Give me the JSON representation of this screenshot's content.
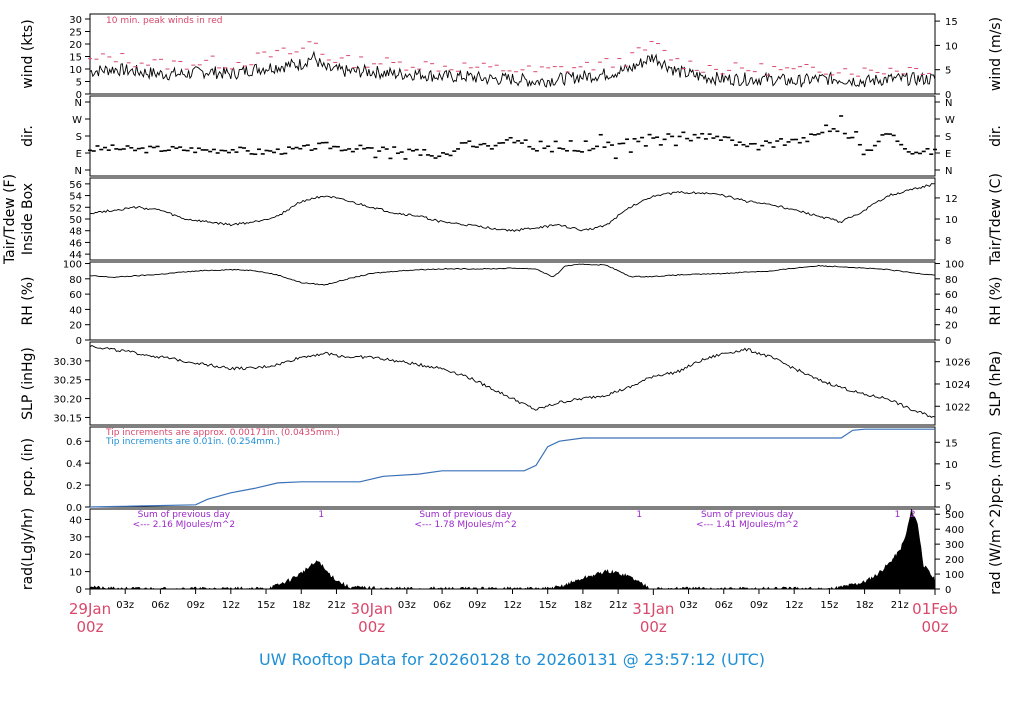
{
  "footer_title": "UW Rooftop Data for 20260128  to  20260131 @ 23:57:12  (UTC)",
  "colors": {
    "red_accent": "#d9486b",
    "blue_accent": "#1f8fd6",
    "pcp_line": "#3a72b8",
    "purple": "#9b27c9",
    "ink": "#000000"
  },
  "time_axis": {
    "day_labels": [
      {
        "day": "29Jan",
        "sub": "00z",
        "hour": 0
      },
      {
        "day": "30Jan",
        "sub": "00z",
        "hour": 24
      },
      {
        "day": "31Jan",
        "sub": "00z",
        "hour": 48
      },
      {
        "day": "01Feb",
        "sub": "00z",
        "hour": 72
      }
    ],
    "hour_ticks": [
      {
        "label": "03z",
        "hour": 3
      },
      {
        "label": "06z",
        "hour": 6
      },
      {
        "label": "09z",
        "hour": 9
      },
      {
        "label": "12z",
        "hour": 12
      },
      {
        "label": "15z",
        "hour": 15
      },
      {
        "label": "18z",
        "hour": 18
      },
      {
        "label": "21z",
        "hour": 21
      },
      {
        "label": "03z",
        "hour": 27
      },
      {
        "label": "06z",
        "hour": 30
      },
      {
        "label": "09z",
        "hour": 33
      },
      {
        "label": "12z",
        "hour": 36
      },
      {
        "label": "15z",
        "hour": 39
      },
      {
        "label": "18z",
        "hour": 42
      },
      {
        "label": "21z",
        "hour": 45
      },
      {
        "label": "03z",
        "hour": 51
      },
      {
        "label": "06z",
        "hour": 54
      },
      {
        "label": "09z",
        "hour": 57
      },
      {
        "label": "12z",
        "hour": 60
      },
      {
        "label": "15z",
        "hour": 63
      },
      {
        "label": "18z",
        "hour": 66
      },
      {
        "label": "21z",
        "hour": 69
      }
    ]
  },
  "chart_data": [
    {
      "id": "wind",
      "type": "line",
      "ylabel_left": "wind (kts)",
      "ylabel_right": "wind (m/s)",
      "yticks_left": [
        "0",
        "5",
        "10",
        "15",
        "20",
        "25",
        "30"
      ],
      "yticks_right": [
        "0",
        "5",
        "10",
        "15"
      ],
      "ylim": [
        0,
        32
      ],
      "annotation": "10 min. peak winds in red",
      "x_hours": [
        0,
        2,
        4,
        6,
        8,
        10,
        12,
        14,
        16,
        18,
        19,
        20,
        22,
        24,
        26,
        28,
        30,
        32,
        34,
        36,
        38,
        40,
        42,
        44,
        46,
        48,
        50,
        52,
        54,
        56,
        58,
        60,
        62,
        64,
        66,
        68,
        70,
        72
      ],
      "series": [
        {
          "values": [
            9,
            10,
            9,
            8,
            8,
            9,
            8,
            10,
            11,
            12,
            15,
            10,
            9,
            9,
            8,
            8,
            7,
            7,
            6,
            6,
            5,
            6,
            7,
            8,
            10,
            15,
            9,
            7,
            6,
            6,
            6,
            5,
            6,
            6,
            5,
            6,
            6,
            6
          ]
        },
        {
          "values": [
            13,
            15,
            13,
            12,
            12,
            13,
            12,
            14,
            16,
            17,
            22,
            15,
            13,
            13,
            12,
            12,
            11,
            11,
            10,
            10,
            9,
            10,
            11,
            12,
            14,
            20,
            13,
            11,
            10,
            10,
            10,
            9,
            10,
            10,
            9,
            10,
            10,
            10
          ]
        }
      ]
    },
    {
      "id": "dir",
      "type": "scatter",
      "ylabel_left": "dir.",
      "ylabel_right": "dir.",
      "yticks": [
        "N",
        "E",
        "S",
        "W",
        "N"
      ],
      "ylim": [
        0,
        360
      ],
      "x_hours": [
        0,
        2,
        4,
        6,
        8,
        10,
        12,
        14,
        16,
        18,
        20,
        22,
        24,
        26,
        28,
        30,
        32,
        34,
        36,
        38,
        40,
        42,
        44,
        46,
        48,
        50,
        52,
        54,
        56,
        58,
        60,
        62,
        64,
        66,
        68,
        70,
        72
      ],
      "values": [
        110,
        115,
        108,
        112,
        110,
        105,
        110,
        95,
        100,
        110,
        130,
        115,
        112,
        105,
        100,
        80,
        140,
        120,
        160,
        100,
        120,
        110,
        140,
        165,
        175,
        180,
        185,
        170,
        120,
        130,
        150,
        180,
        230,
        90,
        200,
        100,
        95
      ]
    },
    {
      "id": "temp",
      "type": "line",
      "ylabel_left": "Tair/Tdew (F)",
      "ylabel_left2": "Inside Box",
      "ylabel_right": "Tair/Tdew (C)",
      "yticks_left": [
        "44",
        "46",
        "48",
        "50",
        "52",
        "54",
        "56"
      ],
      "yticks_right": [
        "8",
        "10",
        "12"
      ],
      "ylim": [
        43,
        57
      ],
      "x_hours": [
        0,
        2,
        4,
        6,
        8,
        10,
        12,
        14,
        16,
        18,
        20,
        22,
        24,
        26,
        28,
        30,
        32,
        34,
        36,
        38,
        40,
        42,
        44,
        46,
        48,
        50,
        52,
        54,
        56,
        58,
        60,
        62,
        64,
        66,
        68,
        70,
        72
      ],
      "values": [
        51,
        51.5,
        52,
        51.5,
        50,
        49.5,
        49,
        49.5,
        50.5,
        53,
        54,
        53,
        52,
        51,
        50.5,
        49.5,
        49,
        48.5,
        48,
        48.5,
        49,
        48,
        49,
        52,
        54,
        54.5,
        54.5,
        54,
        53,
        52.5,
        51.5,
        50.5,
        49.5,
        51.5,
        54,
        55,
        56
      ]
    },
    {
      "id": "rh",
      "type": "line",
      "ylabel_left": "RH (%)",
      "ylabel_right": "RH (%)",
      "yticks": [
        "0",
        "20",
        "40",
        "60",
        "80",
        "100"
      ],
      "ylim": [
        0,
        102
      ],
      "x_hours": [
        0,
        2,
        4,
        6,
        8,
        10,
        12,
        14,
        16,
        18,
        20,
        22,
        24,
        26,
        28,
        30,
        32,
        34,
        36,
        38,
        39.5,
        40.5,
        42,
        44,
        46,
        48,
        50,
        52,
        54,
        56,
        58,
        60,
        62,
        64,
        66,
        68,
        70,
        72
      ],
      "values": [
        84,
        82,
        84,
        86,
        89,
        91,
        92,
        91,
        85,
        75,
        72,
        80,
        87,
        90,
        92,
        93,
        93,
        93,
        94,
        93,
        82,
        97,
        99,
        98,
        83,
        83,
        85,
        86,
        87,
        89,
        90,
        94,
        97,
        96,
        94,
        92,
        88,
        85
      ]
    },
    {
      "id": "slp",
      "type": "line",
      "ylabel_left": "SLP (inHg)",
      "ylabel_right": "SLP (hPa)",
      "yticks_left": [
        "30.15",
        "30.20",
        "30.25",
        "30.30"
      ],
      "yticks_right": [
        "1022",
        "1024",
        "1026"
      ],
      "ylim": [
        30.13,
        30.35
      ],
      "x_hours": [
        0,
        2,
        4,
        6,
        8,
        10,
        12,
        14,
        16,
        18,
        20,
        22,
        24,
        26,
        28,
        30,
        32,
        34,
        36,
        38,
        40,
        42,
        44,
        46,
        48,
        50,
        52,
        54,
        56,
        58,
        60,
        62,
        64,
        66,
        68,
        70,
        72
      ],
      "values": [
        30.34,
        30.33,
        30.32,
        30.31,
        30.3,
        30.29,
        30.28,
        30.28,
        30.29,
        30.31,
        30.32,
        30.31,
        30.31,
        30.3,
        30.29,
        30.28,
        30.26,
        30.23,
        30.2,
        30.17,
        30.19,
        30.2,
        30.21,
        30.23,
        30.26,
        30.27,
        30.3,
        30.32,
        30.33,
        30.31,
        30.28,
        30.25,
        30.23,
        30.21,
        30.2,
        30.17,
        30.15
      ]
    },
    {
      "id": "pcp",
      "type": "line",
      "ylabel_left": "pcp. (in)",
      "ylabel_right": "pcp. (mm)",
      "yticks_left": [
        "0.0",
        "0.2",
        "0.4",
        "0.6"
      ],
      "yticks_right": [
        "0",
        "5",
        "10",
        "15"
      ],
      "ylim": [
        0,
        0.73
      ],
      "note_red": "Tip increments are approx. 0.00171in. (0.0435mm.)",
      "note_blue": "Tip increments are 0.01in. (0.254mm.)",
      "x_hours": [
        0,
        9,
        10,
        12,
        14,
        16,
        18,
        23,
        25,
        28,
        30,
        34,
        37,
        38,
        39,
        40,
        42,
        48,
        54,
        60,
        64,
        65,
        66,
        72
      ],
      "values": [
        0.0,
        0.02,
        0.07,
        0.13,
        0.17,
        0.22,
        0.23,
        0.23,
        0.28,
        0.3,
        0.33,
        0.33,
        0.33,
        0.38,
        0.55,
        0.6,
        0.63,
        0.63,
        0.63,
        0.63,
        0.63,
        0.7,
        0.71,
        0.71
      ]
    },
    {
      "id": "rad",
      "type": "area",
      "ylabel_left": "rad(Lgly/hr)",
      "ylabel_right": "rad (W/m^2)",
      "yticks_left": [
        "0",
        "10",
        "20",
        "30",
        "40"
      ],
      "yticks_right": [
        "0",
        "100",
        "200",
        "300",
        "400",
        "500"
      ],
      "ylim": [
        0,
        46
      ],
      "daily_notes": [
        {
          "line1": "Sum of previous day",
          "line2": "<--- 2.16 MJoules/m^2",
          "hour": 8
        },
        {
          "line1": "Sum of previous day",
          "line2": "<--- 1.78 MJoules/m^2",
          "hour": 32
        },
        {
          "line1": "Sum of previous day",
          "line2": "<--- 1.41 MJoules/m^2",
          "hour": 56
        }
      ],
      "markers": [
        {
          "label": "1",
          "hour": 19.7
        },
        {
          "label": "1",
          "hour": 46.8
        },
        {
          "label": "1",
          "hour": 68.8
        },
        {
          "label": "2",
          "hour": 70.1
        }
      ],
      "x_hours": [
        0,
        0.5,
        1,
        15,
        16,
        17,
        18,
        19,
        19.5,
        20,
        21,
        22,
        25,
        39,
        40,
        42,
        44,
        45,
        46,
        47,
        48,
        49,
        63,
        64,
        66,
        67,
        68,
        69,
        69.5,
        70,
        70.5,
        71,
        72
      ],
      "values": [
        2,
        1,
        0,
        0,
        2,
        5,
        9,
        14,
        16,
        11,
        5,
        1,
        0,
        0,
        1,
        6,
        10,
        9,
        7,
        3,
        0,
        0,
        0,
        1,
        4,
        8,
        14,
        22,
        30,
        45,
        38,
        14,
        5
      ]
    }
  ]
}
